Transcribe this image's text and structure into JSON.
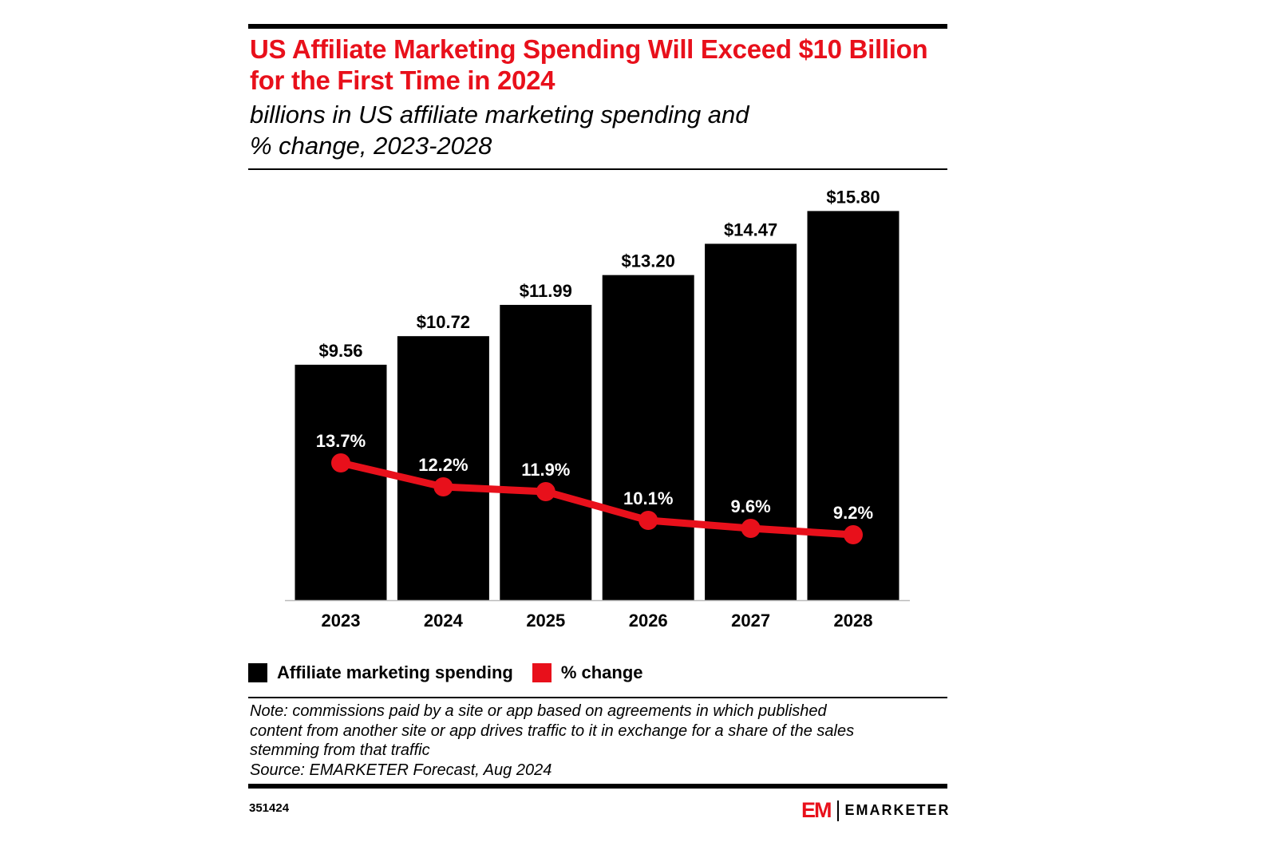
{
  "header": {
    "title": "US Affiliate Marketing Spending Will Exceed $10 Billion for the First Time in 2024",
    "subtitle_line1": "billions in US affiliate marketing spending and",
    "subtitle_line2": "% change, 2023-2028"
  },
  "chart_data": {
    "type": "bar",
    "title": "US Affiliate Marketing Spending Will Exceed $10 Billion for the First Time in 2024",
    "subtitle": "billions in US affiliate marketing spending and % change, 2023-2028",
    "categories": [
      "2023",
      "2024",
      "2025",
      "2026",
      "2027",
      "2028"
    ],
    "series": [
      {
        "name": "Affiliate marketing spending",
        "type": "bar",
        "color": "#000000",
        "values": [
          9.56,
          10.72,
          11.99,
          13.2,
          14.47,
          15.8
        ],
        "labels": [
          "$9.56",
          "$10.72",
          "$11.99",
          "$13.20",
          "$14.47",
          "$15.80"
        ]
      },
      {
        "name": "% change",
        "type": "line",
        "color": "#e8101b",
        "values": [
          13.7,
          12.2,
          11.9,
          10.1,
          9.6,
          9.2
        ],
        "labels": [
          "13.7%",
          "12.2%",
          "11.9%",
          "10.1%",
          "9.6%",
          "9.2%"
        ]
      }
    ],
    "xlabel": "",
    "ylabel": "",
    "grid": false,
    "legend": "bottom-left"
  },
  "legend": {
    "spending": "Affiliate marketing spending",
    "change": "% change"
  },
  "footer": {
    "note_line1": "Note: commissions paid by a site or app based on agreements in which published",
    "note_line2": "content from another site or app drives traffic to it in exchange for a share of the sales",
    "note_line3": "stemming from that traffic",
    "source": "Source: EMARKETER Forecast, Aug 2024",
    "chart_id": "351424",
    "logo_mark": "EM",
    "logo_text": "EMARKETER"
  },
  "colors": {
    "accent": "#e8101b",
    "bars": "#000000"
  }
}
